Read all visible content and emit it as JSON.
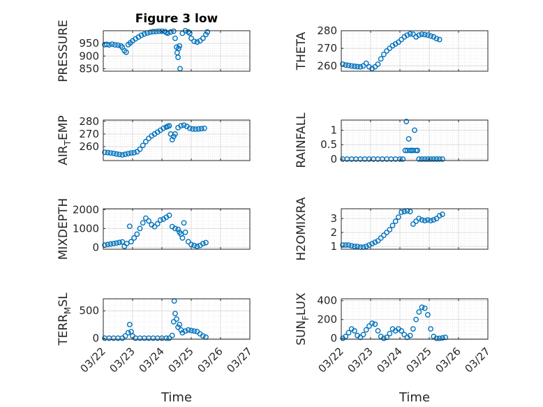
{
  "figure": {
    "title": "Figure 3 low",
    "xlabel": "Time",
    "x_ticks": [
      "03/22",
      "03/23",
      "03/24",
      "03/25",
      "03/26",
      "03/27"
    ],
    "marker": "circle",
    "marker_color": "#0072BD",
    "grid_color": "#dcdcdc",
    "axes_color": "#262626"
  },
  "chart_data": [
    {
      "type": "scatter",
      "id": "pressure",
      "ylabel": "PRESSURE",
      "ylim": [
        840,
        1000
      ],
      "yticks": [
        850,
        900,
        950
      ],
      "xlim": [
        0,
        5
      ],
      "grid": true,
      "points": [
        [
          0.05,
          945
        ],
        [
          0.12,
          946
        ],
        [
          0.2,
          944
        ],
        [
          0.3,
          947
        ],
        [
          0.4,
          944
        ],
        [
          0.5,
          943
        ],
        [
          0.6,
          940
        ],
        [
          0.65,
          934
        ],
        [
          0.72,
          921
        ],
        [
          0.78,
          915
        ],
        [
          0.85,
          945
        ],
        [
          0.92,
          952
        ],
        [
          1.0,
          960
        ],
        [
          1.1,
          968
        ],
        [
          1.2,
          975
        ],
        [
          1.3,
          982
        ],
        [
          1.4,
          987
        ],
        [
          1.5,
          991
        ],
        [
          1.6,
          994
        ],
        [
          1.7,
          996
        ],
        [
          1.8,
          997
        ],
        [
          1.9,
          998
        ],
        [
          2.0,
          998
        ],
        [
          2.1,
          997
        ],
        [
          2.15,
          993
        ],
        [
          2.2,
          990
        ],
        [
          2.3,
          995
        ],
        [
          2.4,
          998
        ],
        [
          2.45,
          970
        ],
        [
          2.5,
          935
        ],
        [
          2.52,
          913
        ],
        [
          2.55,
          895
        ],
        [
          2.57,
          930
        ],
        [
          2.6,
          940
        ],
        [
          2.62,
          850
        ],
        [
          2.7,
          990
        ],
        [
          2.8,
          1000
        ],
        [
          2.9,
          995
        ],
        [
          2.95,
          990
        ],
        [
          3.0,
          970
        ],
        [
          3.1,
          958
        ],
        [
          3.2,
          955
        ],
        [
          3.3,
          960
        ],
        [
          3.4,
          970
        ],
        [
          3.5,
          985
        ],
        [
          3.55,
          995
        ]
      ]
    },
    {
      "type": "scatter",
      "id": "theta",
      "ylabel": "THETA",
      "ylim": [
        257,
        280
      ],
      "yticks": [
        260,
        270,
        280
      ],
      "xlim": [
        0,
        5
      ],
      "grid": true,
      "points": [
        [
          0.05,
          261
        ],
        [
          0.15,
          260.5
        ],
        [
          0.25,
          260.3
        ],
        [
          0.35,
          260
        ],
        [
          0.45,
          259.8
        ],
        [
          0.55,
          259.6
        ],
        [
          0.65,
          259.5
        ],
        [
          0.75,
          260
        ],
        [
          0.85,
          261.5
        ],
        [
          0.95,
          259.5
        ],
        [
          1.05,
          258.5
        ],
        [
          1.15,
          259.5
        ],
        [
          1.25,
          261
        ],
        [
          1.35,
          264
        ],
        [
          1.45,
          266.5
        ],
        [
          1.55,
          268.5
        ],
        [
          1.65,
          270
        ],
        [
          1.75,
          271.5
        ],
        [
          1.85,
          272.5
        ],
        [
          1.95,
          273.5
        ],
        [
          2.05,
          275
        ],
        [
          2.15,
          276.5
        ],
        [
          2.25,
          277.5
        ],
        [
          2.35,
          278.2
        ],
        [
          2.45,
          278
        ],
        [
          2.55,
          276.5
        ],
        [
          2.65,
          277.5
        ],
        [
          2.75,
          278
        ],
        [
          2.85,
          277.8
        ],
        [
          2.95,
          277.5
        ],
        [
          3.05,
          277
        ],
        [
          3.15,
          276.5
        ],
        [
          3.25,
          275.5
        ],
        [
          3.35,
          275
        ]
      ]
    },
    {
      "type": "scatter",
      "id": "air_temp",
      "ylabel": "AIR_TEMP",
      "ylim": [
        249,
        281
      ],
      "yticks": [
        260,
        270,
        280
      ],
      "xlim": [
        0,
        5
      ],
      "grid": true,
      "points": [
        [
          0.05,
          255.5
        ],
        [
          0.15,
          255.3
        ],
        [
          0.25,
          255
        ],
        [
          0.35,
          254.7
        ],
        [
          0.45,
          254.2
        ],
        [
          0.55,
          253.8
        ],
        [
          0.65,
          253.5
        ],
        [
          0.75,
          254
        ],
        [
          0.85,
          254.5
        ],
        [
          0.95,
          255
        ],
        [
          1.05,
          255.2
        ],
        [
          1.15,
          256
        ],
        [
          1.25,
          258
        ],
        [
          1.35,
          261
        ],
        [
          1.45,
          264
        ],
        [
          1.55,
          266.5
        ],
        [
          1.65,
          268.5
        ],
        [
          1.75,
          270
        ],
        [
          1.85,
          271.5
        ],
        [
          1.95,
          273
        ],
        [
          2.05,
          274.5
        ],
        [
          2.15,
          275.5
        ],
        [
          2.2,
          276
        ],
        [
          2.25,
          276.5
        ],
        [
          2.3,
          270
        ],
        [
          2.35,
          265.5
        ],
        [
          2.4,
          268
        ],
        [
          2.45,
          270
        ],
        [
          2.55,
          275
        ],
        [
          2.65,
          276.5
        ],
        [
          2.75,
          277
        ],
        [
          2.85,
          276
        ],
        [
          2.95,
          274.5
        ],
        [
          3.05,
          274
        ],
        [
          3.15,
          273.8
        ],
        [
          3.25,
          274
        ],
        [
          3.35,
          274.2
        ],
        [
          3.45,
          274.5
        ]
      ]
    },
    {
      "type": "scatter",
      "id": "rainfall",
      "ylabel": "RAINFALL",
      "ylim": [
        -0.05,
        1.35
      ],
      "yticks": [
        0,
        0.5,
        1
      ],
      "xlim": [
        0,
        5
      ],
      "grid": true,
      "points": [
        [
          0.05,
          0
        ],
        [
          0.2,
          0
        ],
        [
          0.35,
          0
        ],
        [
          0.5,
          0
        ],
        [
          0.65,
          0
        ],
        [
          0.8,
          0
        ],
        [
          0.95,
          0
        ],
        [
          1.1,
          0
        ],
        [
          1.25,
          0
        ],
        [
          1.4,
          0
        ],
        [
          1.55,
          0
        ],
        [
          1.7,
          0
        ],
        [
          1.85,
          0
        ],
        [
          2.0,
          0
        ],
        [
          2.1,
          0
        ],
        [
          2.18,
          0.3
        ],
        [
          2.22,
          1.3
        ],
        [
          2.25,
          0.3
        ],
        [
          2.3,
          0.7
        ],
        [
          2.35,
          0.3
        ],
        [
          2.4,
          0.3
        ],
        [
          2.45,
          0.3
        ],
        [
          2.5,
          1.0
        ],
        [
          2.55,
          0.3
        ],
        [
          2.6,
          0.3
        ],
        [
          2.65,
          0
        ],
        [
          2.75,
          0
        ],
        [
          2.85,
          0
        ],
        [
          2.95,
          0
        ],
        [
          3.05,
          0
        ],
        [
          3.15,
          0
        ],
        [
          3.25,
          0
        ],
        [
          3.35,
          0
        ],
        [
          3.45,
          0
        ]
      ]
    },
    {
      "type": "scatter",
      "id": "mixdepth",
      "ylabel": "MIXDEPTH",
      "ylim": [
        -100,
        2050
      ],
      "yticks": [
        0,
        1000,
        2000
      ],
      "xlim": [
        0,
        5
      ],
      "grid": true,
      "points": [
        [
          0.05,
          120
        ],
        [
          0.15,
          150
        ],
        [
          0.25,
          180
        ],
        [
          0.35,
          200
        ],
        [
          0.45,
          230
        ],
        [
          0.55,
          260
        ],
        [
          0.65,
          290
        ],
        [
          0.72,
          50
        ],
        [
          0.8,
          200
        ],
        [
          0.9,
          1120
        ],
        [
          0.95,
          300
        ],
        [
          1.05,
          500
        ],
        [
          1.15,
          700
        ],
        [
          1.25,
          1000
        ],
        [
          1.35,
          1300
        ],
        [
          1.45,
          1550
        ],
        [
          1.55,
          1400
        ],
        [
          1.65,
          1200
        ],
        [
          1.75,
          1100
        ],
        [
          1.85,
          1250
        ],
        [
          1.95,
          1450
        ],
        [
          2.05,
          1500
        ],
        [
          2.15,
          1600
        ],
        [
          2.25,
          1700
        ],
        [
          2.35,
          1100
        ],
        [
          2.45,
          1000
        ],
        [
          2.55,
          950
        ],
        [
          2.6,
          800
        ],
        [
          2.65,
          700
        ],
        [
          2.7,
          500
        ],
        [
          2.75,
          1300
        ],
        [
          2.8,
          800
        ],
        [
          2.9,
          300
        ],
        [
          3.0,
          150
        ],
        [
          3.1,
          100
        ],
        [
          3.2,
          50
        ],
        [
          3.3,
          100
        ],
        [
          3.4,
          200
        ],
        [
          3.5,
          250
        ]
      ]
    },
    {
      "type": "scatter",
      "id": "h2omixra",
      "ylabel": "H2OMIXRA",
      "ylim": [
        0.8,
        3.7
      ],
      "yticks": [
        1,
        2,
        3
      ],
      "xlim": [
        0,
        5
      ],
      "grid": true,
      "points": [
        [
          0.05,
          1.1
        ],
        [
          0.15,
          1.1
        ],
        [
          0.25,
          1.1
        ],
        [
          0.35,
          1.05
        ],
        [
          0.45,
          1.0
        ],
        [
          0.55,
          1.0
        ],
        [
          0.65,
          0.95
        ],
        [
          0.75,
          0.95
        ],
        [
          0.85,
          1.0
        ],
        [
          0.95,
          1.1
        ],
        [
          1.05,
          1.2
        ],
        [
          1.15,
          1.3
        ],
        [
          1.25,
          1.4
        ],
        [
          1.35,
          1.6
        ],
        [
          1.45,
          1.8
        ],
        [
          1.55,
          2.0
        ],
        [
          1.65,
          2.2
        ],
        [
          1.75,
          2.5
        ],
        [
          1.85,
          2.8
        ],
        [
          1.95,
          3.1
        ],
        [
          2.05,
          3.45
        ],
        [
          2.15,
          3.5
        ],
        [
          2.25,
          3.55
        ],
        [
          2.35,
          3.5
        ],
        [
          2.45,
          2.6
        ],
        [
          2.55,
          2.8
        ],
        [
          2.65,
          3.0
        ],
        [
          2.75,
          2.9
        ],
        [
          2.85,
          2.85
        ],
        [
          2.95,
          2.9
        ],
        [
          3.05,
          2.85
        ],
        [
          3.15,
          2.9
        ],
        [
          3.25,
          3.0
        ],
        [
          3.35,
          3.2
        ],
        [
          3.45,
          3.3
        ]
      ]
    },
    {
      "type": "scatter",
      "id": "terr_msl",
      "ylabel": "TERR_MSL",
      "ylim": [
        -20,
        720
      ],
      "yticks": [
        0,
        500
      ],
      "xlim": [
        0,
        5
      ],
      "grid": true,
      "points": [
        [
          0.05,
          0
        ],
        [
          0.2,
          0
        ],
        [
          0.35,
          0
        ],
        [
          0.5,
          0
        ],
        [
          0.65,
          0
        ],
        [
          0.75,
          40
        ],
        [
          0.85,
          100
        ],
        [
          0.9,
          250
        ],
        [
          0.95,
          120
        ],
        [
          1.0,
          40
        ],
        [
          1.1,
          0
        ],
        [
          1.25,
          0
        ],
        [
          1.4,
          0
        ],
        [
          1.55,
          0
        ],
        [
          1.7,
          0
        ],
        [
          1.85,
          0
        ],
        [
          2.0,
          0
        ],
        [
          2.15,
          0
        ],
        [
          2.25,
          0
        ],
        [
          2.35,
          50
        ],
        [
          2.4,
          300
        ],
        [
          2.42,
          680
        ],
        [
          2.45,
          450
        ],
        [
          2.5,
          350
        ],
        [
          2.55,
          200
        ],
        [
          2.6,
          250
        ],
        [
          2.65,
          150
        ],
        [
          2.7,
          100
        ],
        [
          2.8,
          130
        ],
        [
          2.9,
          150
        ],
        [
          3.0,
          140
        ],
        [
          3.1,
          130
        ],
        [
          3.2,
          120
        ],
        [
          3.3,
          80
        ],
        [
          3.4,
          40
        ],
        [
          3.5,
          20
        ]
      ]
    },
    {
      "type": "scatter",
      "id": "sun_flux",
      "ylabel": "SUN_FLUX",
      "ylim": [
        -10,
        420
      ],
      "yticks": [
        0,
        200,
        400
      ],
      "xlim": [
        0,
        5
      ],
      "grid": true,
      "points": [
        [
          0.05,
          0
        ],
        [
          0.15,
          20
        ],
        [
          0.25,
          60
        ],
        [
          0.35,
          100
        ],
        [
          0.45,
          80
        ],
        [
          0.55,
          30
        ],
        [
          0.65,
          10
        ],
        [
          0.75,
          40
        ],
        [
          0.85,
          90
        ],
        [
          0.95,
          130
        ],
        [
          1.05,
          160
        ],
        [
          1.15,
          150
        ],
        [
          1.25,
          80
        ],
        [
          1.35,
          20
        ],
        [
          1.45,
          0
        ],
        [
          1.55,
          10
        ],
        [
          1.65,
          50
        ],
        [
          1.75,
          100
        ],
        [
          1.85,
          80
        ],
        [
          1.95,
          100
        ],
        [
          2.05,
          80
        ],
        [
          2.15,
          40
        ],
        [
          2.25,
          10
        ],
        [
          2.35,
          30
        ],
        [
          2.45,
          100
        ],
        [
          2.55,
          200
        ],
        [
          2.65,
          280
        ],
        [
          2.75,
          330
        ],
        [
          2.85,
          320
        ],
        [
          2.95,
          250
        ],
        [
          3.05,
          100
        ],
        [
          3.15,
          20
        ],
        [
          3.25,
          0
        ],
        [
          3.35,
          0
        ],
        [
          3.45,
          5
        ],
        [
          3.55,
          10
        ]
      ]
    }
  ]
}
